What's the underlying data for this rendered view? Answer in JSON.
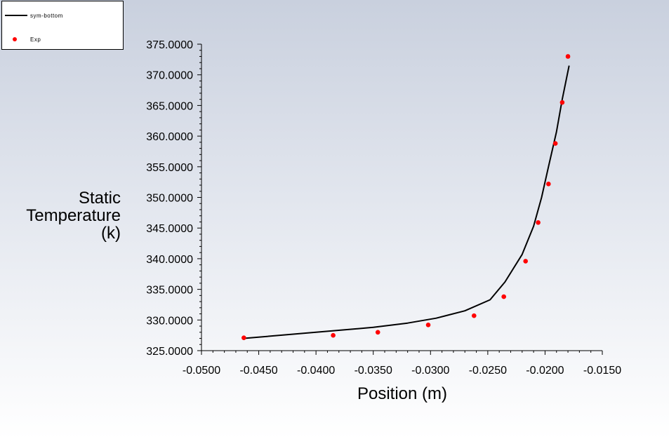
{
  "legend": {
    "items": [
      {
        "label": "sym-bottom",
        "kind": "line",
        "color": "#000000"
      },
      {
        "label": "Exp",
        "kind": "marker",
        "color": "#ff0000"
      }
    ]
  },
  "axes": {
    "ylabel_lines": [
      "Static",
      "Temperature",
      "(k)"
    ],
    "xlabel": "Position (m)"
  },
  "chart_data": {
    "type": "line",
    "title": "",
    "xlabel": "Position (m)",
    "ylabel": "Static Temperature (k)",
    "xlim": [
      -0.05,
      -0.015
    ],
    "ylim": [
      325,
      375
    ],
    "x_ticks": [
      "-0.0500",
      "-0.0450",
      "-0.0400",
      "-0.0350",
      "-0.0300",
      "-0.0250",
      "-0.0200",
      "-0.0150"
    ],
    "y_ticks": [
      "325.0000",
      "330.0000",
      "335.0000",
      "340.0000",
      "345.0000",
      "350.0000",
      "355.0000",
      "360.0000",
      "365.0000",
      "370.0000",
      "375.0000"
    ],
    "grid": false,
    "legend_position": "top-left",
    "series": [
      {
        "name": "sym-bottom",
        "style": "line",
        "color": "#000000",
        "x": [
          -0.0463,
          -0.04,
          -0.035,
          -0.032,
          -0.0295,
          -0.027,
          -0.0248,
          -0.0235,
          -0.022,
          -0.021,
          -0.0203,
          -0.0197,
          -0.019,
          -0.0185,
          -0.0179
        ],
        "y": [
          327.0,
          328.0,
          328.8,
          329.5,
          330.3,
          331.5,
          333.3,
          336.2,
          340.7,
          345.3,
          350.0,
          355.0,
          360.7,
          366.0,
          371.5
        ]
      },
      {
        "name": "Exp",
        "style": "scatter",
        "color": "#ff0000",
        "x": [
          -0.0463,
          -0.0385,
          -0.0346,
          -0.0302,
          -0.0262,
          -0.0236,
          -0.0217,
          -0.0206,
          -0.0197,
          -0.0191,
          -0.0185,
          -0.018
        ],
        "y": [
          327.1,
          327.5,
          328.0,
          329.2,
          330.7,
          333.8,
          339.6,
          345.9,
          352.2,
          358.8,
          365.5,
          373.0
        ]
      }
    ]
  }
}
